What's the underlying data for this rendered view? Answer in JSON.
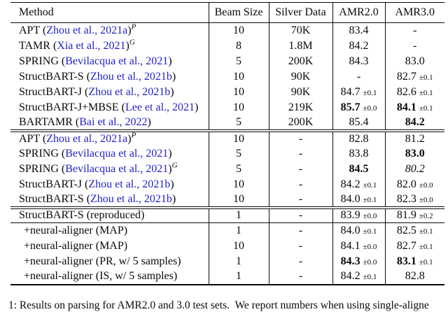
{
  "table": {
    "headers": [
      "Method",
      "Beam Size",
      "Silver Data",
      "AMR2.0",
      "AMR3.0"
    ],
    "sections": [
      {
        "rows": [
          {
            "m_pre": "APT (",
            "m_cite": "Zhou et al., 2021a",
            "m_post": ")",
            "m_sup": "P",
            "indent": false,
            "beam": "10",
            "silver": "70K",
            "a2": "83.4",
            "a2pm": "",
            "a2b": false,
            "a2i": false,
            "a3": "-",
            "a3pm": "",
            "a3b": false,
            "a3i": false,
            "rule_below": false
          },
          {
            "m_pre": "TAMR (",
            "m_cite": "Xia et al., 2021",
            "m_post": ")",
            "m_sup": "G",
            "indent": false,
            "beam": "8",
            "silver": "1.8M",
            "a2": "84.2",
            "a2pm": "",
            "a2b": false,
            "a2i": false,
            "a3": "-",
            "a3pm": "",
            "a3b": false,
            "a3i": false,
            "rule_below": false
          },
          {
            "m_pre": "SPRING (",
            "m_cite": "Bevilacqua et al., 2021",
            "m_post": ")",
            "m_sup": "",
            "indent": false,
            "beam": "5",
            "silver": "200K",
            "a2": "84.3",
            "a2pm": "",
            "a2b": false,
            "a2i": false,
            "a3": "83.0",
            "a3pm": "",
            "a3b": false,
            "a3i": false,
            "rule_below": false
          },
          {
            "m_pre": "StructBART-S (",
            "m_cite": "Zhou et al., 2021b",
            "m_post": ")",
            "m_sup": "",
            "indent": false,
            "beam": "10",
            "silver": "90K",
            "a2": "-",
            "a2pm": "",
            "a2b": false,
            "a2i": false,
            "a3": "82.7",
            "a3pm": "±0.1",
            "a3b": false,
            "a3i": false,
            "rule_below": false
          },
          {
            "m_pre": "StructBART-J (",
            "m_cite": "Zhou et al., 2021b",
            "m_post": ")",
            "m_sup": "",
            "indent": false,
            "beam": "10",
            "silver": "90K",
            "a2": "84.7",
            "a2pm": "±0.1",
            "a2b": false,
            "a2i": false,
            "a3": "82.6",
            "a3pm": "±0.1",
            "a3b": false,
            "a3i": false,
            "rule_below": false
          },
          {
            "m_pre": "StructBART-J+MBSE (",
            "m_cite": "Lee et al., 2021",
            "m_post": ")",
            "m_sup": "",
            "indent": false,
            "beam": "10",
            "silver": "219K",
            "a2": "85.7",
            "a2pm": "±0.0",
            "a2b": true,
            "a2i": false,
            "a3": "84.1",
            "a3pm": "±0.1",
            "a3b": true,
            "a3i": false,
            "rule_below": false
          },
          {
            "m_pre": "BARTAMR (",
            "m_cite": "Bai et al., 2022",
            "m_post": ")",
            "m_sup": "",
            "indent": false,
            "beam": "5",
            "silver": "200K",
            "a2": "85.4",
            "a2pm": "",
            "a2b": false,
            "a2i": false,
            "a3": "84.2",
            "a3pm": "",
            "a3b": true,
            "a3i": false,
            "rule_below": false
          }
        ]
      },
      {
        "rows": [
          {
            "m_pre": "APT (",
            "m_cite": "Zhou et al., 2021a",
            "m_post": ")",
            "m_sup": "P",
            "indent": false,
            "beam": "10",
            "silver": "-",
            "a2": "82.8",
            "a2pm": "",
            "a2b": false,
            "a2i": false,
            "a3": "81.2",
            "a3pm": "",
            "a3b": false,
            "a3i": false,
            "rule_below": false
          },
          {
            "m_pre": "SPRING (",
            "m_cite": "Bevilacqua et al., 2021",
            "m_post": ")",
            "m_sup": "",
            "indent": false,
            "beam": "5",
            "silver": "-",
            "a2": "83.8",
            "a2pm": "",
            "a2b": false,
            "a2i": false,
            "a3": "83.0",
            "a3pm": "",
            "a3b": true,
            "a3i": false,
            "rule_below": false
          },
          {
            "m_pre": "SPRING (",
            "m_cite": "Bevilacqua et al., 2021",
            "m_post": ")",
            "m_sup": "G",
            "indent": false,
            "beam": "5",
            "silver": "-",
            "a2": "84.5",
            "a2pm": "",
            "a2b": true,
            "a2i": false,
            "a3": "80.2",
            "a3pm": "",
            "a3b": false,
            "a3i": true,
            "rule_below": false
          },
          {
            "m_pre": "StructBART-J (",
            "m_cite": "Zhou et al., 2021b",
            "m_post": ")",
            "m_sup": "",
            "indent": false,
            "beam": "10",
            "silver": "-",
            "a2": "84.2",
            "a2pm": "±0.1",
            "a2b": false,
            "a2i": false,
            "a3": "82.0",
            "a3pm": "±0.0",
            "a3b": false,
            "a3i": false,
            "rule_below": false
          },
          {
            "m_pre": "StructBART-S (",
            "m_cite": "Zhou et al., 2021b",
            "m_post": ")",
            "m_sup": "",
            "indent": false,
            "beam": "10",
            "silver": "-",
            "a2": "84.0",
            "a2pm": "±0.1",
            "a2b": false,
            "a2i": false,
            "a3": "82.3",
            "a3pm": "±0.0",
            "a3b": false,
            "a3i": false,
            "rule_below": false
          }
        ]
      },
      {
        "rows": [
          {
            "m_pre": "StructBART-S (reproduced)",
            "m_cite": "",
            "m_post": "",
            "m_sup": "",
            "indent": false,
            "beam": "1",
            "silver": "-",
            "a2": "83.9",
            "a2pm": "±0.0",
            "a2b": false,
            "a2i": false,
            "a3": "81.9",
            "a3pm": "±0.2",
            "a3b": false,
            "a3i": false,
            "rule_below": true
          },
          {
            "m_pre": "+neural-aligner (MAP)",
            "m_cite": "",
            "m_post": "",
            "m_sup": "",
            "indent": true,
            "beam": "1",
            "silver": "-",
            "a2": "84.0",
            "a2pm": "±0.1",
            "a2b": false,
            "a2i": false,
            "a3": "82.5",
            "a3pm": "±0.1",
            "a3b": false,
            "a3i": false,
            "rule_below": false
          },
          {
            "m_pre": "+neural-aligner (MAP)",
            "m_cite": "",
            "m_post": "",
            "m_sup": "",
            "indent": true,
            "beam": "10",
            "silver": "-",
            "a2": "84.1",
            "a2pm": "±0.0",
            "a2b": false,
            "a2i": false,
            "a3": "82.7",
            "a3pm": "±0.1",
            "a3b": false,
            "a3i": false,
            "rule_below": false
          },
          {
            "m_pre": "+neural-aligner (PR, w/ 5 samples)",
            "m_cite": "",
            "m_post": "",
            "m_sup": "",
            "indent": true,
            "beam": "1",
            "silver": "-",
            "a2": "84.3",
            "a2pm": "±0.0",
            "a2b": true,
            "a2i": false,
            "a3": "83.1",
            "a3pm": "±0.1",
            "a3b": true,
            "a3i": false,
            "rule_below": false
          },
          {
            "m_pre": "+neural-aligner (IS, w/ 5 samples)",
            "m_cite": "",
            "m_post": "",
            "m_sup": "",
            "indent": true,
            "beam": "1",
            "silver": "-",
            "a2": "84.2",
            "a2pm": "±0.1",
            "a2b": false,
            "a2i": false,
            "a3": "82.8",
            "a3pm": "",
            "a3b": false,
            "a3i": false,
            "rule_below": false
          }
        ]
      }
    ]
  },
  "caption": "1: Results on parsing for AMR2.0 and 3.0 test sets.  We report numbers when using single-aligne",
  "colors": {
    "citation_blue": "#2222c8",
    "text": "#090909",
    "background": "#ffffff"
  }
}
